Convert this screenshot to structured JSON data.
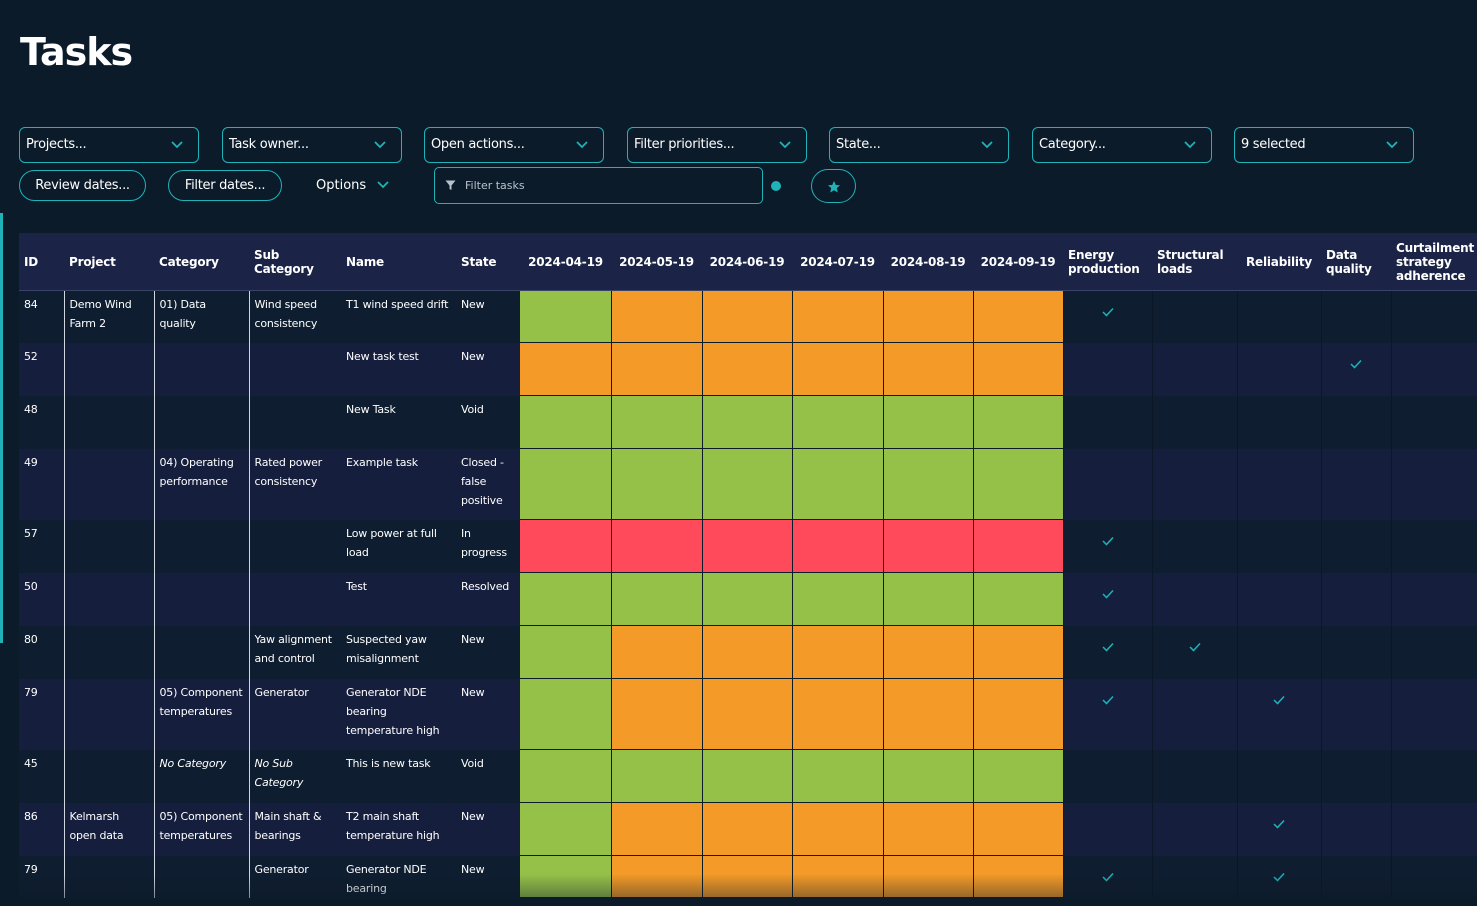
{
  "page": {
    "title": "Tasks"
  },
  "filters": {
    "projects": "Projects...",
    "task_owner": "Task owner...",
    "open_actions": "Open actions...",
    "priorities": "Filter priorities...",
    "state": "State...",
    "category": "Category...",
    "selected": "9 selected",
    "review_dates": "Review dates...",
    "filter_dates": "Filter dates...",
    "options": "Options",
    "search_placeholder": "Filter tasks"
  },
  "colors": {
    "accent": "#1fb3b8",
    "green": "#95c149",
    "orange": "#f49a28",
    "red": "#ff4a5c"
  },
  "table": {
    "columns": {
      "id": "ID",
      "project": "Project",
      "category": "Category",
      "sub_category": "Sub Category",
      "name": "Name",
      "state": "State",
      "dates": [
        "2024-04-19",
        "2024-05-19",
        "2024-06-19",
        "2024-07-19",
        "2024-08-19",
        "2024-09-19"
      ],
      "energy": "Energy production",
      "structural": "Structural loads",
      "reliability": "Reliability",
      "data_quality": "Data quality",
      "curtailment": "Curtailment strategy adherence"
    },
    "rows": [
      {
        "id": "84",
        "project": "Demo Wind Farm 2",
        "category": "01) Data quality",
        "sub_category": "Wind speed consistency",
        "name": "T1 wind speed drift",
        "state": "New",
        "status": [
          "green",
          "orange",
          "orange",
          "orange",
          "orange",
          "orange"
        ],
        "energy": true,
        "structural": false,
        "reliability": false,
        "data_quality": false,
        "curtailment": false
      },
      {
        "id": "52",
        "project": "",
        "category": "",
        "sub_category": "",
        "name": "New task test",
        "state": "New",
        "status": [
          "orange",
          "orange",
          "orange",
          "orange",
          "orange",
          "orange"
        ],
        "energy": false,
        "structural": false,
        "reliability": false,
        "data_quality": true,
        "curtailment": false
      },
      {
        "id": "48",
        "project": "",
        "category": "",
        "sub_category": "",
        "name": "New Task",
        "state": "Void",
        "status": [
          "green",
          "green",
          "green",
          "green",
          "green",
          "green"
        ],
        "energy": false,
        "structural": false,
        "reliability": false,
        "data_quality": false,
        "curtailment": false
      },
      {
        "id": "49",
        "project": "",
        "category": "04) Operating performance",
        "sub_category": "Rated power consistency",
        "name": "Example task",
        "state": "Closed - false positive",
        "status": [
          "green",
          "green",
          "green",
          "green",
          "green",
          "green"
        ],
        "energy": false,
        "structural": false,
        "reliability": false,
        "data_quality": false,
        "curtailment": false
      },
      {
        "id": "57",
        "project": "",
        "category": "",
        "sub_category": "",
        "name": "Low power at full load",
        "state": "In progress",
        "status": [
          "red",
          "red",
          "red",
          "red",
          "red",
          "red"
        ],
        "energy": true,
        "structural": false,
        "reliability": false,
        "data_quality": false,
        "curtailment": false
      },
      {
        "id": "50",
        "project": "",
        "category": "",
        "sub_category": "",
        "name": "Test",
        "state": "Resolved",
        "status": [
          "green",
          "green",
          "green",
          "green",
          "green",
          "green"
        ],
        "energy": true,
        "structural": false,
        "reliability": false,
        "data_quality": false,
        "curtailment": false
      },
      {
        "id": "80",
        "project": "",
        "category": "",
        "sub_category": "Yaw alignment and control",
        "name": "Suspected yaw misalignment",
        "state": "New",
        "status": [
          "green",
          "orange",
          "orange",
          "orange",
          "orange",
          "orange"
        ],
        "energy": true,
        "structural": true,
        "reliability": false,
        "data_quality": false,
        "curtailment": false
      },
      {
        "id": "79",
        "project": "",
        "category": "05) Component temperatures",
        "sub_category": "Generator",
        "name": "Generator NDE bearing temperature high",
        "state": "New",
        "status": [
          "green",
          "orange",
          "orange",
          "orange",
          "orange",
          "orange"
        ],
        "energy": true,
        "structural": false,
        "reliability": true,
        "data_quality": false,
        "curtailment": false
      },
      {
        "id": "45",
        "project": "",
        "category": "No Category",
        "sub_category": "No Sub Category",
        "name": "This is new task",
        "state": "Void",
        "status": [
          "green",
          "green",
          "green",
          "green",
          "green",
          "green"
        ],
        "energy": false,
        "structural": false,
        "reliability": false,
        "data_quality": false,
        "curtailment": false
      },
      {
        "id": "86",
        "project": "Kelmarsh open data",
        "category": "05) Component temperatures",
        "sub_category": "Main shaft & bearings",
        "name": "T2 main shaft temperature high",
        "state": "New",
        "status": [
          "green",
          "orange",
          "orange",
          "orange",
          "orange",
          "orange"
        ],
        "energy": false,
        "structural": false,
        "reliability": true,
        "data_quality": false,
        "curtailment": false
      },
      {
        "id": "79",
        "project": "",
        "category": "",
        "sub_category": "Generator",
        "name": "Generator NDE bearing",
        "state": "New",
        "status": [
          "green",
          "orange",
          "orange",
          "orange",
          "orange",
          "orange"
        ],
        "energy": true,
        "structural": false,
        "reliability": true,
        "data_quality": false,
        "curtailment": false
      }
    ]
  }
}
